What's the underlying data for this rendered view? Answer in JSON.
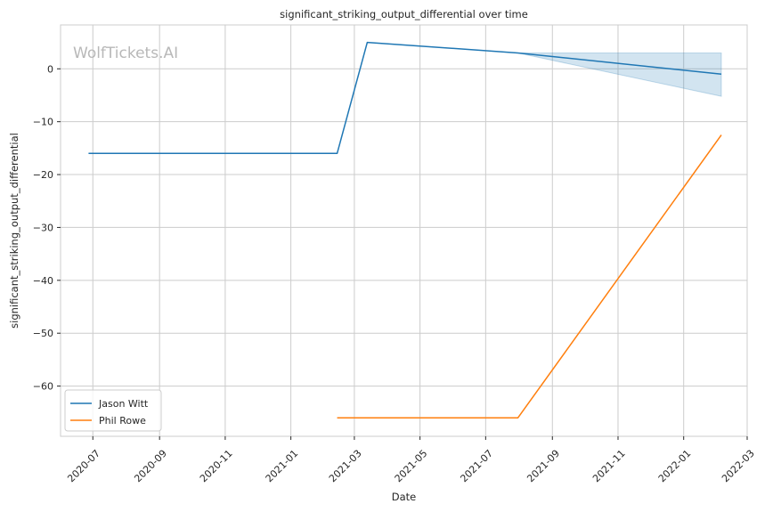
{
  "chart_data": {
    "type": "line",
    "title": "significant_striking_output_differential over time",
    "xlabel": "Date",
    "ylabel": "significant_striking_output_differential",
    "watermark": "WolfTickets.AI",
    "x_ticks": [
      "2020-07",
      "2020-09",
      "2020-11",
      "2021-01",
      "2021-03",
      "2021-05",
      "2021-07",
      "2021-09",
      "2021-11",
      "2022-01",
      "2022-03"
    ],
    "y_ticks": [
      0,
      -10,
      -20,
      -30,
      -40,
      -50,
      -60
    ],
    "xlim": [
      "2020-06-01",
      "2022-03-01"
    ],
    "ylim": [
      -69.5,
      8.3
    ],
    "grid": true,
    "legend_position": "lower-left",
    "series": [
      {
        "name": "Jason Witt",
        "color": "#1f77b4",
        "points": [
          {
            "x": "2020-06-27",
            "y": -16
          },
          {
            "x": "2021-02-13",
            "y": -16
          },
          {
            "x": "2021-03-13",
            "y": 5
          },
          {
            "x": "2021-07-31",
            "y": 3
          },
          {
            "x": "2022-02-05",
            "y": -1
          }
        ],
        "band": [
          {
            "x": "2021-07-31",
            "low": 3,
            "high": 3
          },
          {
            "x": "2022-02-05",
            "low": -5.2,
            "high": 3
          }
        ]
      },
      {
        "name": "Phil Rowe",
        "color": "#ff7f0e",
        "points": [
          {
            "x": "2021-02-13",
            "y": -66
          },
          {
            "x": "2021-07-31",
            "y": -66
          },
          {
            "x": "2022-02-05",
            "y": -12.5
          }
        ]
      }
    ]
  }
}
